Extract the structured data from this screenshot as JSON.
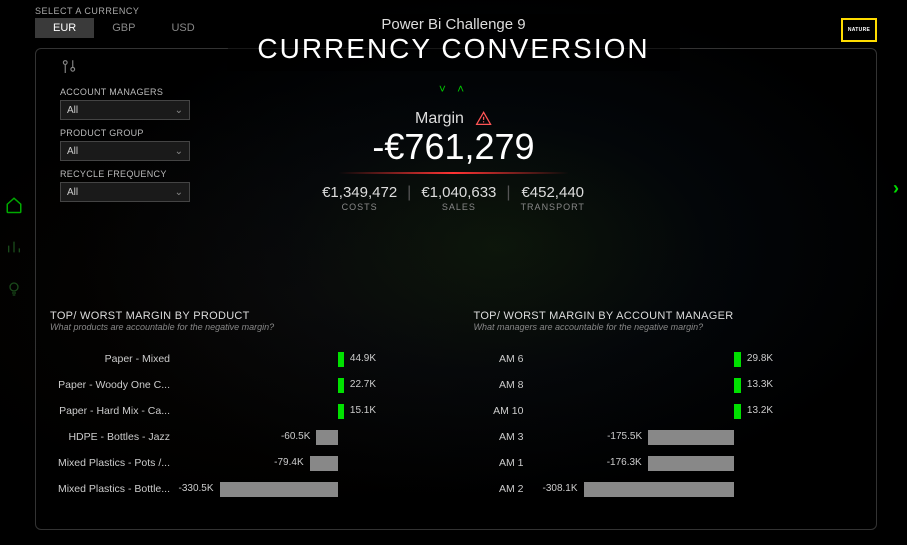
{
  "header": {
    "currency_label": "SELECT A CURRENCY",
    "tabs": [
      "EUR",
      "GBP",
      "USD"
    ],
    "active_tab": 0,
    "title_small": "Power Bi Challenge 9",
    "title_big": "CURRENCY CONVERSION",
    "logo_text": "NATURE"
  },
  "filters": {
    "items": [
      {
        "label": "ACCOUNT MANAGERS",
        "value": "All"
      },
      {
        "label": "PRODUCT GROUP",
        "value": "All"
      },
      {
        "label": "RECYCLE FREQUENCY",
        "value": "All"
      }
    ]
  },
  "kpi": {
    "label": "Margin",
    "value": "-€761,279",
    "underline_color": "#ff3333",
    "subs": [
      {
        "value": "€1,349,472",
        "label": "COSTS"
      },
      {
        "value": "€1,040,633",
        "label": "SALES"
      },
      {
        "value": "€452,440",
        "label": "TRANSPORT"
      }
    ]
  },
  "charts": {
    "product": {
      "title": "TOP/ WORST MARGIN BY PRODUCT",
      "subtitle": "What products are accountable for the negative margin?",
      "pos_color": "#00e000",
      "neg_color": "#888888",
      "max_abs": 330.5,
      "rows": [
        {
          "label": "Paper - Mixed",
          "value": 44.9,
          "disp": "44.9K"
        },
        {
          "label": "Paper - Woody One C...",
          "value": 22.7,
          "disp": "22.7K"
        },
        {
          "label": "Paper - Hard Mix - Ca...",
          "value": 15.1,
          "disp": "15.1K"
        },
        {
          "label": "HDPE - Bottles - Jazz",
          "value": -60.5,
          "disp": "-60.5K"
        },
        {
          "label": "Mixed Plastics - Pots /...",
          "value": -79.4,
          "disp": "-79.4K"
        },
        {
          "label": "Mixed Plastics - Bottle...",
          "value": -330.5,
          "disp": "-330.5K"
        }
      ]
    },
    "manager": {
      "title": "TOP/ WORST MARGIN BY ACCOUNT MANAGER",
      "subtitle": "What managers are accountable for the negative margin?",
      "pos_color": "#00e000",
      "neg_color": "#888888",
      "max_abs": 308.1,
      "rows": [
        {
          "label": "AM 6",
          "value": 29.8,
          "disp": "29.8K"
        },
        {
          "label": "AM 8",
          "value": 13.3,
          "disp": "13.3K"
        },
        {
          "label": "AM 10",
          "value": 13.2,
          "disp": "13.2K"
        },
        {
          "label": "AM 3",
          "value": -175.5,
          "disp": "-175.5K"
        },
        {
          "label": "AM 1",
          "value": -176.3,
          "disp": "-176.3K"
        },
        {
          "label": "AM 2",
          "value": -308.1,
          "disp": "-308.1K"
        }
      ]
    }
  },
  "colors": {
    "accent": "#00dd00",
    "text_dim": "#888",
    "panel_border": "#333"
  }
}
